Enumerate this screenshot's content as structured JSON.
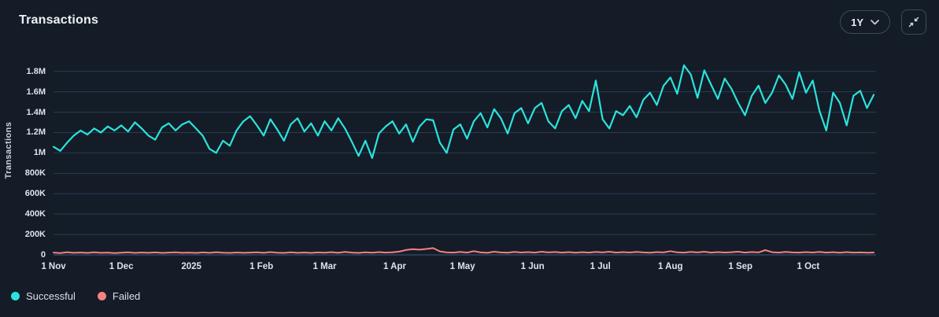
{
  "header": {
    "title": "Transactions",
    "range_selector": {
      "value": "1Y"
    }
  },
  "colors": {
    "background": "#141c27",
    "gridline": "#263c55",
    "zero_line": "#33506e",
    "successful": "#2ae3dc",
    "failed": "#f88080"
  },
  "chart_data": {
    "type": "line",
    "title": "Transactions",
    "ylabel": "Transactions",
    "xlabel": "",
    "grid": true,
    "legend_position": "bottom-left",
    "x_range_days": 364,
    "ylim_millions": [
      0,
      1.96
    ],
    "y_ticks": [
      {
        "v": 0,
        "label": "0"
      },
      {
        "v": 0.2,
        "label": "200K"
      },
      {
        "v": 0.4,
        "label": "400K"
      },
      {
        "v": 0.6,
        "label": "600K"
      },
      {
        "v": 0.8,
        "label": "800K"
      },
      {
        "v": 1.0,
        "label": "1M"
      },
      {
        "v": 1.2,
        "label": "1.2M"
      },
      {
        "v": 1.4,
        "label": "1.4M"
      },
      {
        "v": 1.6,
        "label": "1.6M"
      },
      {
        "v": 1.8,
        "label": "1.8M"
      }
    ],
    "x_ticks": [
      {
        "day": 0,
        "label": "1 Nov"
      },
      {
        "day": 30,
        "label": "1 Dec"
      },
      {
        "day": 61,
        "label": "2025"
      },
      {
        "day": 92,
        "label": "1 Feb"
      },
      {
        "day": 120,
        "label": "1 Mar"
      },
      {
        "day": 151,
        "label": "1 Apr"
      },
      {
        "day": 181,
        "label": "1 May"
      },
      {
        "day": 212,
        "label": "1 Jun"
      },
      {
        "day": 242,
        "label": "1 Jul"
      },
      {
        "day": 273,
        "label": "1 Aug"
      },
      {
        "day": 304,
        "label": "1 Sep"
      },
      {
        "day": 334,
        "label": "1 Oct"
      }
    ],
    "series": [
      {
        "id": "successful",
        "name": "Successful",
        "color": "#2ae3dc",
        "unit": "millions",
        "sample_interval_days": 3,
        "values_millions": [
          1.06,
          1.02,
          1.1,
          1.17,
          1.22,
          1.18,
          1.24,
          1.2,
          1.26,
          1.22,
          1.27,
          1.21,
          1.3,
          1.24,
          1.17,
          1.13,
          1.25,
          1.29,
          1.22,
          1.28,
          1.31,
          1.24,
          1.17,
          1.04,
          1.0,
          1.12,
          1.07,
          1.22,
          1.31,
          1.36,
          1.27,
          1.17,
          1.33,
          1.23,
          1.12,
          1.28,
          1.34,
          1.21,
          1.29,
          1.17,
          1.31,
          1.22,
          1.34,
          1.24,
          1.11,
          0.97,
          1.12,
          0.95,
          1.19,
          1.26,
          1.31,
          1.19,
          1.28,
          1.11,
          1.26,
          1.33,
          1.32,
          1.1,
          1.0,
          1.23,
          1.28,
          1.14,
          1.31,
          1.39,
          1.25,
          1.43,
          1.34,
          1.19,
          1.39,
          1.44,
          1.29,
          1.44,
          1.49,
          1.31,
          1.24,
          1.41,
          1.47,
          1.34,
          1.51,
          1.41,
          1.71,
          1.33,
          1.24,
          1.41,
          1.37,
          1.46,
          1.35,
          1.52,
          1.59,
          1.47,
          1.66,
          1.74,
          1.58,
          1.86,
          1.77,
          1.54,
          1.81,
          1.67,
          1.53,
          1.73,
          1.63,
          1.49,
          1.37,
          1.56,
          1.66,
          1.49,
          1.59,
          1.76,
          1.67,
          1.53,
          1.79,
          1.59,
          1.71,
          1.41,
          1.22,
          1.59,
          1.49,
          1.27,
          1.56,
          1.61,
          1.44,
          1.57
        ]
      },
      {
        "id": "failed",
        "name": "Failed",
        "color": "#f88080",
        "unit": "millions",
        "sample_interval_days": 3,
        "values_millions": [
          0.022,
          0.018,
          0.026,
          0.02,
          0.023,
          0.019,
          0.025,
          0.02,
          0.022,
          0.018,
          0.021,
          0.025,
          0.019,
          0.023,
          0.02,
          0.024,
          0.019,
          0.022,
          0.025,
          0.02,
          0.022,
          0.019,
          0.024,
          0.02,
          0.026,
          0.021,
          0.019,
          0.023,
          0.02,
          0.022,
          0.025,
          0.02,
          0.027,
          0.021,
          0.019,
          0.025,
          0.02,
          0.023,
          0.019,
          0.024,
          0.021,
          0.026,
          0.02,
          0.029,
          0.022,
          0.019,
          0.025,
          0.021,
          0.027,
          0.022,
          0.025,
          0.032,
          0.048,
          0.056,
          0.051,
          0.058,
          0.066,
          0.034,
          0.024,
          0.022,
          0.029,
          0.022,
          0.036,
          0.024,
          0.02,
          0.031,
          0.024,
          0.021,
          0.029,
          0.023,
          0.027,
          0.022,
          0.031,
          0.024,
          0.028,
          0.022,
          0.027,
          0.021,
          0.026,
          0.022,
          0.029,
          0.024,
          0.031,
          0.022,
          0.027,
          0.023,
          0.029,
          0.024,
          0.021,
          0.027,
          0.024,
          0.036,
          0.025,
          0.022,
          0.029,
          0.024,
          0.031,
          0.022,
          0.027,
          0.023,
          0.026,
          0.031,
          0.022,
          0.028,
          0.024,
          0.046,
          0.026,
          0.022,
          0.029,
          0.024,
          0.022,
          0.027,
          0.023,
          0.029,
          0.022,
          0.026,
          0.021,
          0.027,
          0.022,
          0.024,
          0.021,
          0.023
        ]
      }
    ]
  }
}
